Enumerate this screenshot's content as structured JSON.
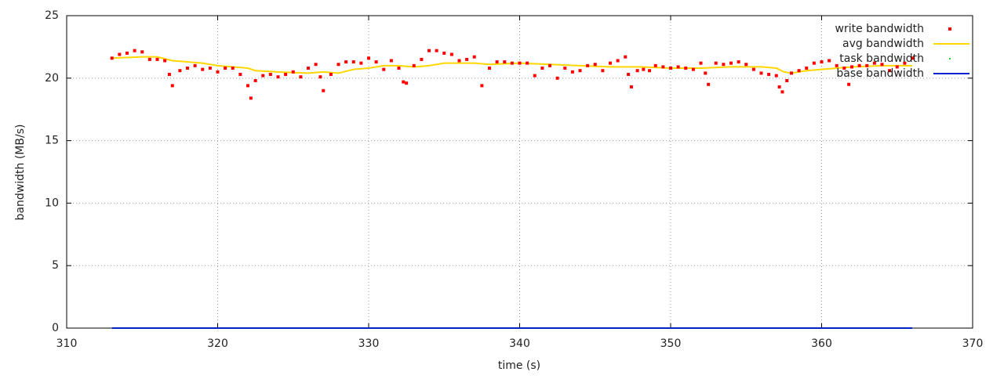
{
  "chart_data": {
    "type": "scatter",
    "x_label": "time (s)",
    "y_label": "bandwidth (MB/s)",
    "xlim": [
      310,
      370
    ],
    "xticks": [
      310,
      320,
      330,
      340,
      350,
      360,
      370
    ],
    "ylim": [
      0,
      25
    ],
    "yticks": [
      0,
      5,
      10,
      15,
      20,
      25
    ],
    "grid": true,
    "legend": "top-right",
    "series": [
      {
        "name": "write bandwidth",
        "color": "#ff0000",
        "style": "points",
        "x": [
          313.0,
          313.5,
          314.0,
          314.5,
          315.0,
          315.5,
          316.0,
          316.5,
          316.8,
          317.0,
          317.5,
          318.0,
          318.5,
          319.0,
          319.5,
          320.0,
          320.5,
          321.0,
          321.5,
          322.0,
          322.2,
          322.5,
          323.0,
          323.5,
          324.0,
          324.5,
          325.0,
          325.5,
          326.0,
          326.5,
          326.8,
          327.0,
          327.5,
          328.0,
          328.5,
          329.0,
          329.5,
          330.0,
          330.5,
          331.0,
          331.5,
          332.0,
          332.3,
          332.5,
          333.0,
          333.5,
          334.0,
          334.5,
          335.0,
          335.5,
          336.0,
          336.5,
          337.0,
          337.5,
          338.0,
          338.5,
          339.0,
          339.5,
          340.0,
          340.5,
          341.0,
          341.5,
          342.0,
          342.5,
          343.0,
          343.5,
          344.0,
          344.5,
          345.0,
          345.5,
          346.0,
          346.5,
          347.0,
          347.2,
          347.4,
          347.8,
          348.2,
          348.6,
          349.0,
          349.5,
          350.0,
          350.5,
          351.0,
          351.5,
          352.0,
          352.3,
          352.5,
          353.0,
          353.5,
          354.0,
          354.5,
          355.0,
          355.5,
          356.0,
          356.5,
          357.0,
          357.2,
          357.4,
          357.7,
          358.0,
          358.5,
          359.0,
          359.5,
          360.0,
          360.5,
          361.0,
          361.5,
          361.8,
          362.0,
          362.5,
          363.0,
          363.5,
          364.0,
          364.5,
          365.0,
          365.5,
          366.0
        ],
        "values": [
          21.6,
          21.9,
          22.0,
          22.2,
          22.1,
          21.5,
          21.5,
          21.4,
          20.3,
          19.4,
          20.6,
          20.8,
          21.0,
          20.7,
          20.8,
          20.5,
          20.8,
          20.8,
          20.3,
          19.4,
          18.4,
          19.8,
          20.2,
          20.3,
          20.1,
          20.3,
          20.5,
          20.1,
          20.8,
          21.1,
          20.1,
          19.0,
          20.3,
          21.1,
          21.3,
          21.3,
          21.2,
          21.6,
          21.3,
          20.7,
          21.4,
          20.8,
          19.7,
          19.6,
          21.0,
          21.5,
          22.2,
          22.2,
          22.0,
          21.9,
          21.4,
          21.5,
          21.7,
          19.4,
          20.8,
          21.3,
          21.3,
          21.2,
          21.2,
          21.2,
          20.2,
          20.8,
          21.0,
          20.0,
          20.8,
          20.5,
          20.6,
          21.0,
          21.1,
          20.6,
          21.2,
          21.4,
          21.7,
          20.3,
          19.3,
          20.6,
          20.7,
          20.6,
          21.0,
          20.9,
          20.8,
          20.9,
          20.8,
          20.7,
          21.2,
          20.4,
          19.5,
          21.2,
          21.1,
          21.2,
          21.3,
          21.1,
          20.7,
          20.4,
          20.3,
          20.2,
          19.3,
          18.9,
          19.8,
          20.4,
          20.6,
          20.8,
          21.2,
          21.3,
          21.4,
          21.0,
          20.8,
          19.5,
          20.9,
          21.0,
          21.0,
          21.2,
          21.1,
          20.6,
          20.9,
          21.2,
          21.6
        ]
      },
      {
        "name": "avg bandwidth",
        "color": "#ffd700",
        "style": "line",
        "x": [
          313,
          315,
          316,
          317,
          318,
          319,
          320,
          321,
          322,
          322.5,
          324,
          326,
          327,
          328,
          329,
          330,
          331,
          332,
          333,
          334,
          335,
          337,
          338,
          340,
          342,
          344,
          346,
          348,
          350,
          352,
          354,
          356,
          357,
          357.5,
          358,
          359,
          360,
          362,
          364,
          366
        ],
        "values": [
          21.6,
          21.7,
          21.7,
          21.4,
          21.3,
          21.2,
          21.0,
          20.9,
          20.8,
          20.6,
          20.5,
          20.4,
          20.5,
          20.4,
          20.7,
          20.8,
          21.0,
          21.0,
          20.9,
          21.0,
          21.2,
          21.2,
          21.1,
          21.2,
          21.1,
          21.0,
          20.9,
          20.9,
          20.8,
          20.8,
          20.9,
          20.9,
          20.8,
          20.5,
          20.4,
          20.6,
          20.7,
          20.9,
          21.0,
          21.0
        ]
      },
      {
        "name": "task bandwidth",
        "color": "#22cc22",
        "style": "dots",
        "x": [
          313.0,
          320.0,
          330.0,
          340.0,
          350.0,
          360.0,
          366.0
        ],
        "values": [
          21.6,
          20.5,
          21.6,
          21.2,
          20.8,
          21.3,
          21.6
        ]
      },
      {
        "name": "base bandwidth",
        "color": "#0022cc",
        "style": "line",
        "x": [
          313,
          366
        ],
        "values": [
          0,
          0
        ]
      }
    ]
  }
}
